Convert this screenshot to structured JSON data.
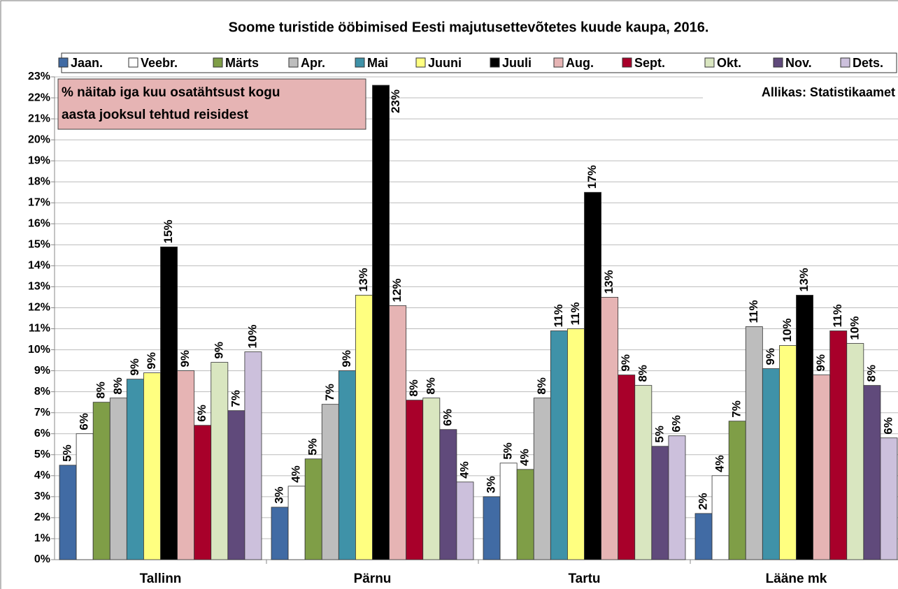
{
  "chart_data": {
    "type": "bar",
    "title": "Soome turistide ööbimised Eesti majutusettevõtetes kuude kaupa, 2016.",
    "annotations": [
      "% näitab iga kuu osatähtsust kogu",
      "aasta jooksul tehtud reisidest"
    ],
    "source": "Allikas: Statistikaamet",
    "categories": [
      "Tallinn",
      "Pärnu",
      "Tartu",
      "Lääne mk"
    ],
    "ylim": [
      0,
      23
    ],
    "yticks": [
      {
        "value": 0,
        "label": "0%"
      },
      {
        "value": 1,
        "label": "1%"
      },
      {
        "value": 2,
        "label": "2%"
      },
      {
        "value": 3,
        "label": "3%"
      },
      {
        "value": 4,
        "label": "4%"
      },
      {
        "value": 5,
        "label": "5%"
      },
      {
        "value": 6,
        "label": "6%"
      },
      {
        "value": 7,
        "label": "7%"
      },
      {
        "value": 8,
        "label": "8%"
      },
      {
        "value": 9,
        "label": "9%"
      },
      {
        "value": 10,
        "label": "10%"
      },
      {
        "value": 11,
        "label": "11%"
      },
      {
        "value": 12,
        "label": "12%"
      },
      {
        "value": 13,
        "label": "13%"
      },
      {
        "value": 14,
        "label": "14%"
      },
      {
        "value": 15,
        "label": "15%"
      },
      {
        "value": 16,
        "label": "16%"
      },
      {
        "value": 17,
        "label": "17%"
      },
      {
        "value": 18,
        "label": "18%"
      },
      {
        "value": 19,
        "label": "19%"
      },
      {
        "value": 20,
        "label": "20%"
      },
      {
        "value": 21,
        "label": "21%"
      },
      {
        "value": 22,
        "label": "22%"
      },
      {
        "value": 23,
        "label": "23%"
      }
    ],
    "grid": true,
    "legend": "top",
    "series": [
      {
        "name": "Jaan.",
        "color": "#416ba4",
        "values": [
          4.5,
          2.5,
          3.0,
          2.2
        ],
        "value_labels": [
          "5%",
          "3%",
          "3%",
          "2%"
        ]
      },
      {
        "name": "Veebr.",
        "color": "#ffffff",
        "values": [
          6.0,
          3.5,
          4.6,
          4.0
        ],
        "value_labels": [
          "6%",
          "4%",
          "5%",
          "4%"
        ]
      },
      {
        "name": "Märts",
        "color": "#7f9e47",
        "values": [
          7.5,
          4.8,
          4.3,
          6.6
        ],
        "value_labels": [
          "8%",
          "5%",
          "4%",
          "7%"
        ]
      },
      {
        "name": "Apr.",
        "color": "#bdbdbd",
        "values": [
          7.7,
          7.4,
          7.7,
          11.1
        ],
        "value_labels": [
          "8%",
          "7%",
          "8%",
          "11%"
        ]
      },
      {
        "name": "Mai",
        "color": "#3f92a8",
        "values": [
          8.6,
          9.0,
          10.9,
          9.1
        ],
        "value_labels": [
          "9%",
          "9%",
          "11%",
          "9%"
        ]
      },
      {
        "name": "Juuni",
        "color": "#ffff80",
        "values": [
          8.9,
          12.6,
          11.0,
          10.2
        ],
        "value_labels": [
          "9%",
          "13%",
          "11%",
          "10%"
        ]
      },
      {
        "name": "Juuli",
        "color": "#000000",
        "values": [
          14.9,
          22.6,
          17.5,
          12.6
        ],
        "value_labels": [
          "15%",
          "23%",
          "17%",
          "13%"
        ]
      },
      {
        "name": "Aug.",
        "color": "#e6b4b4",
        "values": [
          9.0,
          12.1,
          12.5,
          8.8
        ],
        "value_labels": [
          "9%",
          "12%",
          "13%",
          "9%"
        ]
      },
      {
        "name": "Sept.",
        "color": "#a8002a",
        "values": [
          6.4,
          7.6,
          8.8,
          10.9
        ],
        "value_labels": [
          "6%",
          "8%",
          "9%",
          "11%"
        ]
      },
      {
        "name": "Okt.",
        "color": "#d9e6c0",
        "values": [
          9.4,
          7.7,
          8.3,
          10.3
        ],
        "value_labels": [
          "9%",
          "8%",
          "8%",
          "10%"
        ]
      },
      {
        "name": "Nov.",
        "color": "#604a7b",
        "values": [
          7.1,
          6.2,
          5.4,
          8.3
        ],
        "value_labels": [
          "7%",
          "6%",
          "5%",
          "8%"
        ]
      },
      {
        "name": "Dets.",
        "color": "#ccc0dc",
        "values": [
          9.9,
          3.7,
          5.9,
          5.8
        ],
        "value_labels": [
          "10%",
          "4%",
          "6%",
          "6%"
        ]
      }
    ]
  }
}
